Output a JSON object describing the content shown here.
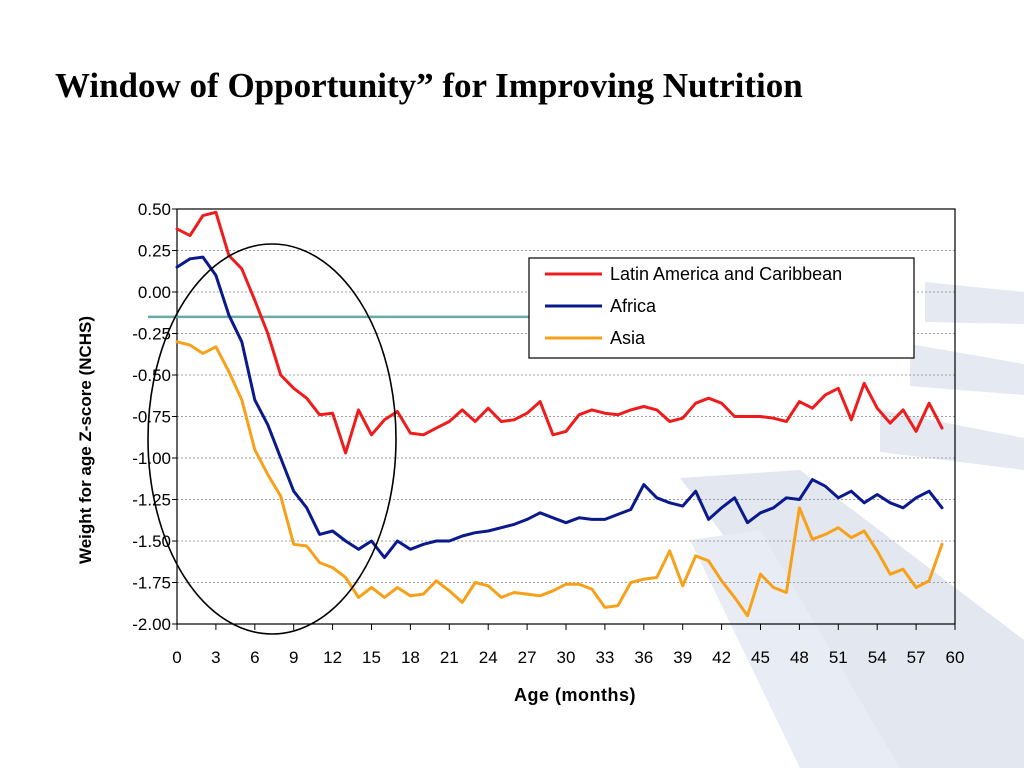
{
  "slide": {
    "title": "Window of Opportunity” for Improving Nutrition"
  },
  "colors": {
    "latin_america": "#ee1c1c",
    "africa": "#0a1a8c",
    "asia": "#f7a11a",
    "reference_line": "#6aa8ac",
    "highlight_ellipse": "#000000",
    "background_stripes": "#dde3ef"
  },
  "chart_data": {
    "type": "line",
    "xlabel": "Age (months)",
    "ylabel": "Weight for age Z-score (NCHS)",
    "xlim": [
      0,
      60
    ],
    "ylim": [
      -2.0,
      0.5
    ],
    "x_ticks": [
      0,
      3,
      6,
      9,
      12,
      15,
      18,
      21,
      24,
      27,
      30,
      33,
      36,
      39,
      42,
      45,
      48,
      51,
      54,
      57,
      60
    ],
    "y_ticks": [
      "0.50",
      "0.25",
      "0.00",
      "-0.25",
      "-0.50",
      "-0.75",
      "-1.00",
      "-1.25",
      "-1.50",
      "-1.75",
      "-2.00"
    ],
    "grid": "horizontal dotted",
    "legend_position": "top-right",
    "reference_line_y": -0.15,
    "annotation": "ellipse around 0–16 months",
    "x": [
      0,
      1,
      2,
      3,
      4,
      5,
      6,
      7,
      8,
      9,
      10,
      11,
      12,
      13,
      14,
      15,
      16,
      17,
      18,
      19,
      20,
      21,
      22,
      23,
      24,
      25,
      26,
      27,
      28,
      29,
      30,
      31,
      32,
      33,
      34,
      35,
      36,
      37,
      38,
      39,
      40,
      41,
      42,
      43,
      44,
      45,
      46,
      47,
      48,
      49,
      50,
      51,
      52,
      53,
      54,
      55,
      56,
      57,
      58,
      59
    ],
    "series": [
      {
        "name": "Latin America and Caribbean",
        "color": "#ee1c1c",
        "values": [
          0.38,
          0.34,
          0.46,
          0.48,
          0.22,
          0.14,
          -0.05,
          -0.25,
          -0.5,
          -0.58,
          -0.64,
          -0.74,
          -0.73,
          -0.97,
          -0.71,
          -0.86,
          -0.77,
          -0.72,
          -0.85,
          -0.86,
          -0.82,
          -0.78,
          -0.71,
          -0.78,
          -0.7,
          -0.78,
          -0.77,
          -0.73,
          -0.66,
          -0.86,
          -0.84,
          -0.74,
          -0.71,
          -0.73,
          -0.74,
          -0.71,
          -0.69,
          -0.71,
          -0.78,
          -0.76,
          -0.67,
          -0.64,
          -0.67,
          -0.75,
          -0.75,
          -0.75,
          -0.76,
          -0.78,
          -0.66,
          -0.7,
          -0.62,
          -0.58,
          -0.77,
          -0.55,
          -0.7,
          -0.79,
          -0.71,
          -0.84,
          -0.67,
          -0.82
        ]
      },
      {
        "name": "Africa",
        "color": "#0a1a8c",
        "values": [
          0.15,
          0.2,
          0.21,
          0.1,
          -0.14,
          -0.3,
          -0.65,
          -0.8,
          -1.0,
          -1.2,
          -1.3,
          -1.46,
          -1.44,
          -1.5,
          -1.55,
          -1.5,
          -1.6,
          -1.5,
          -1.55,
          -1.52,
          -1.5,
          -1.5,
          -1.47,
          -1.45,
          -1.44,
          -1.42,
          -1.4,
          -1.37,
          -1.33,
          -1.36,
          -1.39,
          -1.36,
          -1.37,
          -1.37,
          -1.34,
          -1.31,
          -1.16,
          -1.24,
          -1.27,
          -1.29,
          -1.2,
          -1.37,
          -1.3,
          -1.24,
          -1.39,
          -1.33,
          -1.3,
          -1.24,
          -1.25,
          -1.13,
          -1.17,
          -1.24,
          -1.2,
          -1.27,
          -1.22,
          -1.27,
          -1.3,
          -1.24,
          -1.2,
          -1.3
        ]
      },
      {
        "name": "Asia",
        "color": "#f7a11a",
        "values": [
          -0.3,
          -0.32,
          -0.37,
          -0.33,
          -0.48,
          -0.65,
          -0.95,
          -1.1,
          -1.23,
          -1.52,
          -1.53,
          -1.63,
          -1.66,
          -1.72,
          -1.84,
          -1.78,
          -1.84,
          -1.78,
          -1.83,
          -1.82,
          -1.74,
          -1.8,
          -1.87,
          -1.75,
          -1.77,
          -1.84,
          -1.81,
          -1.82,
          -1.83,
          -1.8,
          -1.76,
          -1.76,
          -1.79,
          -1.9,
          -1.89,
          -1.75,
          -1.73,
          -1.72,
          -1.56,
          -1.77,
          -1.59,
          -1.62,
          -1.74,
          -1.84,
          -1.95,
          -1.7,
          -1.78,
          -1.81,
          -1.3,
          -1.49,
          -1.46,
          -1.42,
          -1.48,
          -1.44,
          -1.56,
          -1.7,
          -1.67,
          -1.78,
          -1.74,
          -1.52
        ]
      }
    ]
  }
}
